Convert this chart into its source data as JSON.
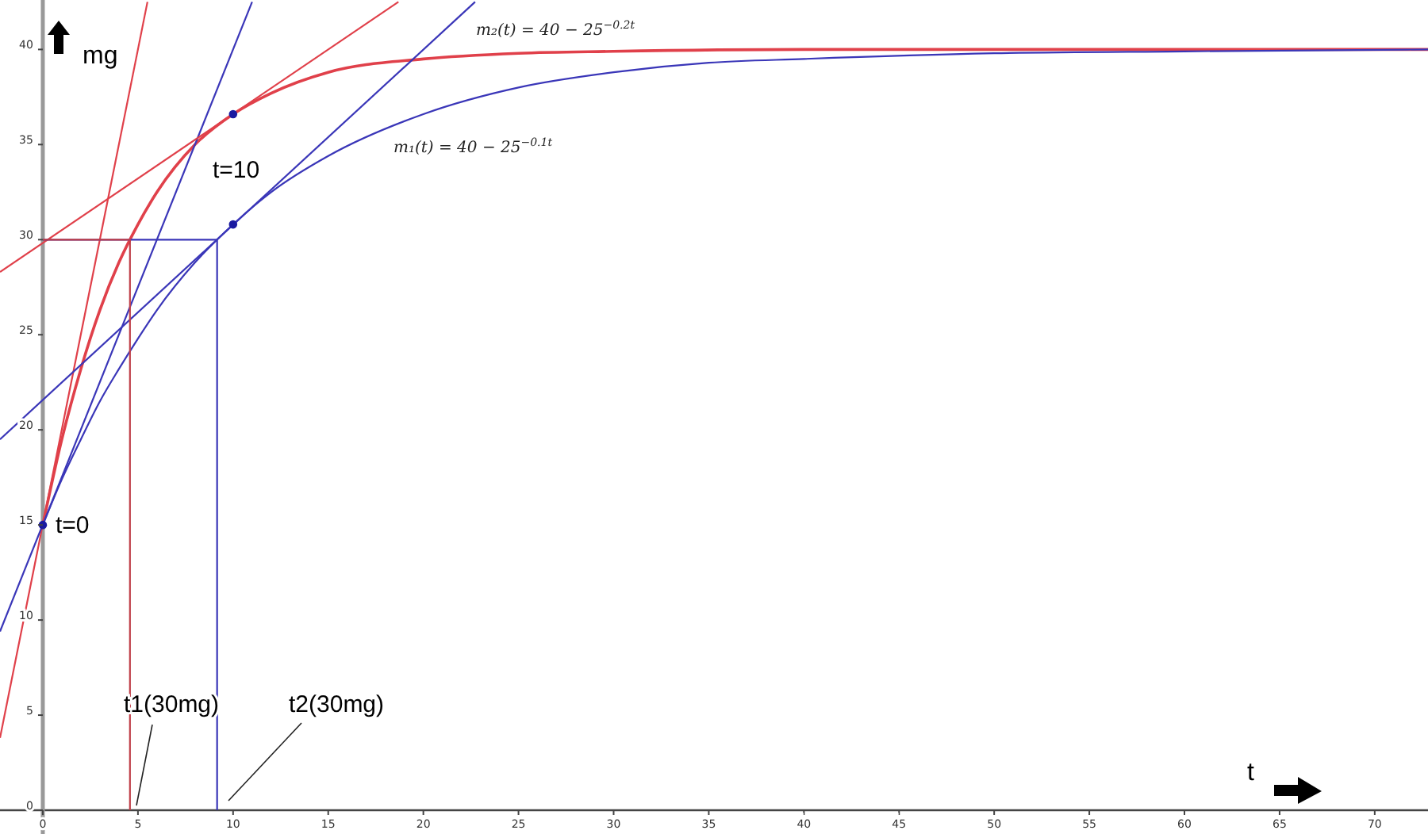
{
  "chart_data": {
    "type": "line",
    "xlabel": "t",
    "ylabel": "mg",
    "xlim": [
      -2.25,
      72.8
    ],
    "ylim": [
      -1.25,
      42.6
    ],
    "xticks": [
      0,
      5,
      10,
      15,
      20,
      25,
      30,
      35,
      40,
      45,
      50,
      55,
      60,
      65,
      70
    ],
    "yticks": [
      0,
      5,
      10,
      15,
      20,
      25,
      30,
      35,
      40
    ],
    "grid": false,
    "legend": false,
    "marker": "none",
    "line_style": "solid",
    "series": [
      {
        "name": "m₂(t) = 40 − 25$^{−0.2t}$",
        "color": "#e0404a",
        "x": [
          0,
          1,
          2,
          3,
          4,
          5,
          6,
          8,
          10,
          12,
          15,
          20,
          25,
          30,
          40,
          50,
          60,
          72.8
        ],
        "values": [
          15,
          19.5,
          23.2,
          26.3,
          28.8,
          30.8,
          32.5,
          35,
          36.6,
          37.7,
          38.8,
          39.5,
          39.8,
          39.9,
          40,
          40,
          40,
          40
        ]
      },
      {
        "name": "m₁(t) = 40 − 25$^{−0.1t}$",
        "color": "#3a36b8",
        "x": [
          0,
          1,
          2,
          3,
          4,
          5,
          6,
          8,
          10,
          12,
          15,
          20,
          25,
          30,
          35,
          40,
          50,
          60,
          72.8
        ],
        "values": [
          15,
          17.4,
          19.5,
          21.5,
          23.2,
          24.8,
          26.3,
          28.8,
          30.8,
          32.5,
          34.4,
          36.6,
          38,
          38.8,
          39.3,
          39.5,
          39.8,
          39.9,
          40
        ]
      },
      {
        "color": "#e0404a",
        "x": [
          -2.25,
          5.5
        ],
        "values": [
          3.8,
          42.5
        ]
      },
      {
        "color": "#3a36b8",
        "x": [
          -2.25,
          11
        ],
        "values": [
          9.4,
          42.5
        ]
      },
      {
        "color": "#e0404a",
        "x": [
          -2.25,
          18.69
        ],
        "values": [
          28.3,
          42.5
        ]
      },
      {
        "color": "#3a36b8",
        "x": [
          -2.25,
          22.72
        ],
        "values": [
          19.5,
          42.5
        ]
      },
      {
        "color": "#3a36b8",
        "x": [
          0,
          9.16,
          9.16
        ],
        "values": [
          30,
          30,
          0
        ]
      },
      {
        "color": "#c0404a",
        "x": [
          0,
          4.58,
          4.58
        ],
        "values": [
          30,
          30,
          0
        ]
      },
      {
        "type": "scatter",
        "marker": "circle",
        "color": "#1a1aa0",
        "x": [
          0,
          10,
          10
        ],
        "values": [
          15,
          36.6,
          30.8
        ]
      }
    ],
    "annotations": [
      {
        "text": "t=0",
        "x": 0,
        "y": 15
      },
      "t=10",
      "t1(30mg)",
      "t2(30mg)"
    ]
  }
}
